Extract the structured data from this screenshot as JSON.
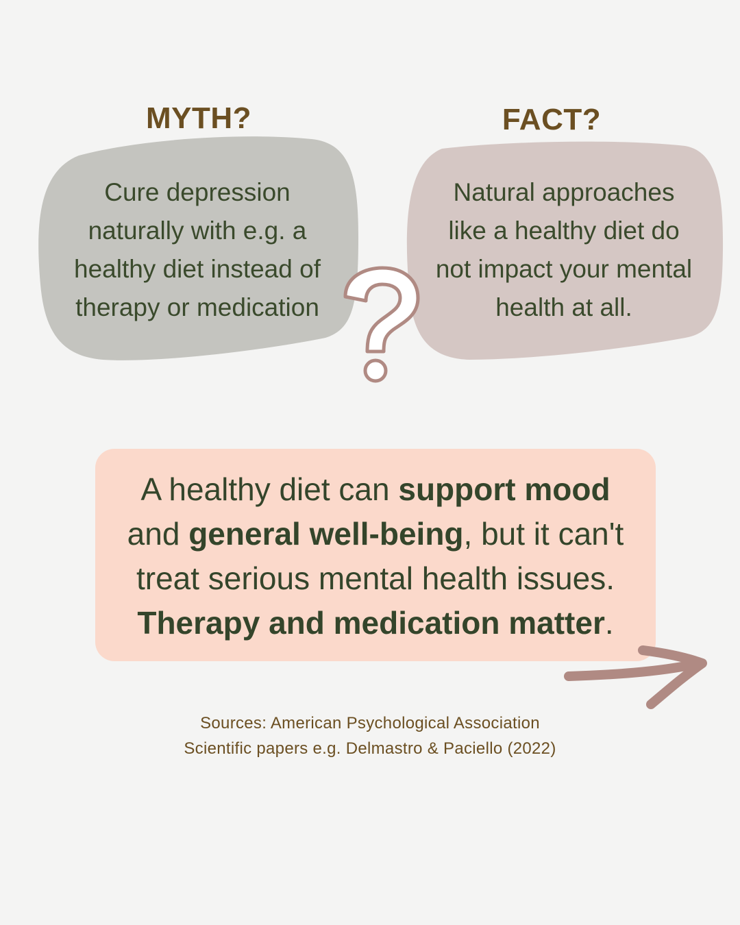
{
  "myth": {
    "heading": "MYTH?",
    "text": "Cure depression\nnaturally with e.g. a\nhealthy diet instead of\ntherapy or medication"
  },
  "fact": {
    "heading": "FACT?",
    "text": "Natural approaches\nlike a healthy diet do\nnot impact your mental\nhealth at all."
  },
  "answer": {
    "p1": "A healthy diet can ",
    "b1": "support mood",
    "p2": "and ",
    "b2": "general well-being",
    "p3": ", but it can't",
    "p4": "treat serious mental health issues.",
    "b3": "Therapy and medication matter",
    "p5": "."
  },
  "sources": {
    "line1": "Sources: American Psychological Association",
    "line2": "Scientific papers e.g. Delmastro & Paciello (2022)"
  },
  "colors": {
    "background": "#f4f4f3",
    "heading": "#6b4f22",
    "body_text": "#3a4a2c",
    "myth_blob": "#c4c4bf",
    "fact_blob": "#d5c7c4",
    "answer_box": "#fbd9cb",
    "accent_mauve": "#b08a83"
  },
  "icons": {
    "question": "question-mark-icon",
    "arrow": "arrow-right-icon"
  }
}
